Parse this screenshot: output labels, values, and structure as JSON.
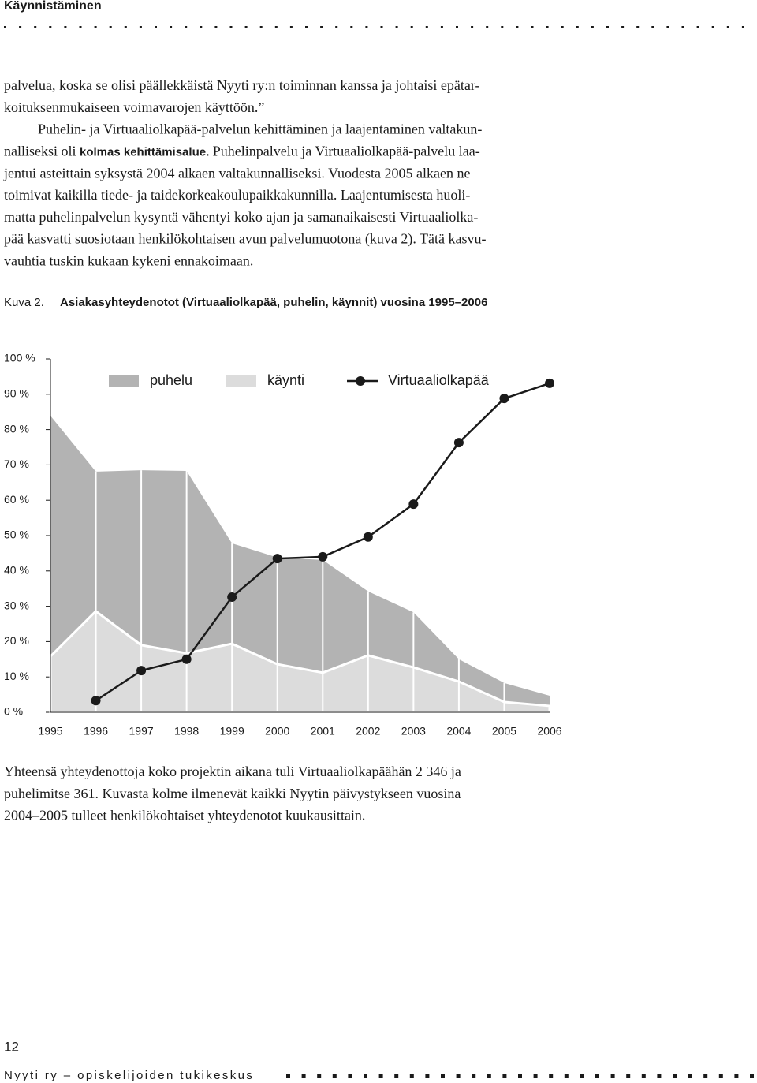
{
  "header": {
    "title": "Käynnistäminen"
  },
  "body": {
    "paragraphs": [
      {
        "lines": [
          "palvelua, koska se olisi päällekkäistä Nyyti ry:n toiminnan kanssa ja johtaisi epätar-",
          "koituksenmukaiseen voimavarojen käyttöön.”"
        ]
      },
      {
        "lines": [
          "Puhelin- ja Virtuaaliolkapää-palvelun kehittäminen ja laajentaminen valtakun-",
          [
            "nalliseksi oli ",
            "kolmas kehittämisalue.",
            " Puhelinpalvelu ja Virtuaaliolkapää-palvelu laa-"
          ],
          "jentui asteittain syksystä 2004 alkaen valtakunnalliseksi. Vuodesta 2005 alkaen ne",
          "toimivat kaikilla tiede- ja taidekorkeakoulupaikkakunnilla. Laajentumisesta huoli-",
          "matta puhelinpalvelun kysyntä vähentyi koko ajan ja samanaikaisesti Virtuaaliolka-",
          "pää kasvatti suosiotaan henkilökohtaisen avun palvelumuotona (kuva 2). Tätä kasvu-",
          "vauhtia tuskin kukaan kykeni ennakoimaan."
        ]
      }
    ]
  },
  "figure": {
    "label": "Kuva 2.",
    "caption": "Asiakasyhteydenotot (Virtuaaliolkapää, puhelin, käynnit) vuosina 1995–2006"
  },
  "chart_data": {
    "type": "area",
    "categories": [
      "1995",
      "1996",
      "1997",
      "1998",
      "1999",
      "2000",
      "2001",
      "2002",
      "2003",
      "2004",
      "2005",
      "2006"
    ],
    "series": [
      {
        "name": "puhelu",
        "type": "area",
        "color": "#b3b3b3",
        "values": [
          83.9,
          68.1,
          68.5,
          68.3,
          47.8,
          43.8,
          43.1,
          34.2,
          28.3,
          15.0,
          8.3,
          4.7
        ]
      },
      {
        "name": "käynti",
        "type": "area",
        "color": "#dcdcdc",
        "values": [
          15.8,
          28.6,
          19.0,
          16.7,
          19.4,
          13.6,
          11.2,
          16.1,
          12.7,
          8.7,
          2.9,
          1.8
        ]
      },
      {
        "name": "Virtuaaliolkapää",
        "type": "line",
        "color": "#1a1a1a",
        "values": [
          null,
          3.3,
          11.8,
          15.0,
          32.6,
          43.5,
          44.0,
          49.6,
          58.9,
          76.3,
          88.8,
          93.1
        ]
      }
    ],
    "ylim": [
      0,
      100
    ],
    "yticks": [
      {
        "value": 0,
        "label": "0 %"
      },
      {
        "value": 10,
        "label": "10 %"
      },
      {
        "value": 20,
        "label": "20 %"
      },
      {
        "value": 30,
        "label": "30 %"
      },
      {
        "value": 40,
        "label": "40 %"
      },
      {
        "value": 50,
        "label": "50 %"
      },
      {
        "value": 60,
        "label": "60 %"
      },
      {
        "value": 70,
        "label": "70 %"
      },
      {
        "value": 80,
        "label": "80 %"
      },
      {
        "value": 90,
        "label": "90 %"
      },
      {
        "value": 100,
        "label": "100 %"
      }
    ],
    "legend": "top",
    "grid": false
  },
  "closing": {
    "lines": [
      "Yhteensä yhteydenottoja koko projektin aikana tuli Virtuaaliolkapäähän 2 346 ja",
      "puhelimitse 361. Kuvasta kolme ilmenevät kaikki Nyytin päivystykseen vuosina",
      "2004–2005 tulleet henkilökohtaiset yhteydenotot kuukausittain."
    ]
  },
  "footer": {
    "page_number": "12",
    "publisher": "Nyyti ry – opiskelijoiden tukikeskus"
  }
}
